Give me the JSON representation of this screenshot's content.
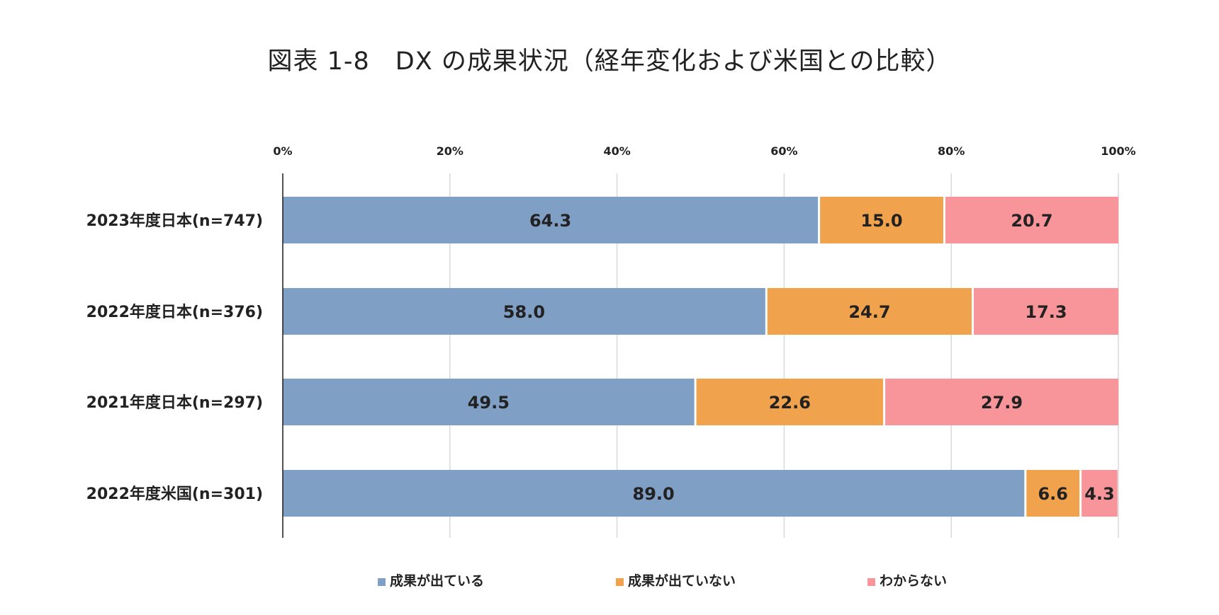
{
  "title": "図表 1-8　DX の成果状況（経年変化および米国との比較）",
  "chart_data": {
    "type": "bar",
    "orientation": "horizontal",
    "stacked": "percent",
    "categories": [
      "2023年度日本(n=747)",
      "2022年度日本(n=376)",
      "2021年度日本(n=297)",
      "2022年度米国(n=301)"
    ],
    "series": [
      {
        "name": "成果が出ている",
        "values": [
          64.3,
          58.0,
          49.5,
          89.0
        ],
        "color": "#7f9fc4"
      },
      {
        "name": "成果が出ていない",
        "values": [
          15.0,
          24.7,
          22.6,
          6.6
        ],
        "color": "#f0a34c"
      },
      {
        "name": "わからない",
        "values": [
          20.7,
          17.3,
          27.9,
          4.3
        ],
        "color": "#f7959b"
      }
    ],
    "data_labels": [
      [
        "64.3",
        "15.0",
        "20.7"
      ],
      [
        "58.0",
        "24.7",
        "17.3"
      ],
      [
        "49.5",
        "22.6",
        "27.9"
      ],
      [
        "89.0",
        "6.6",
        "4.3"
      ]
    ],
    "x_ticks": [
      "0%",
      "20%",
      "40%",
      "60%",
      "80%",
      "100%"
    ],
    "xlim": [
      0,
      100
    ],
    "x_axis_position": "top",
    "grid": true,
    "legend": "bottom"
  }
}
